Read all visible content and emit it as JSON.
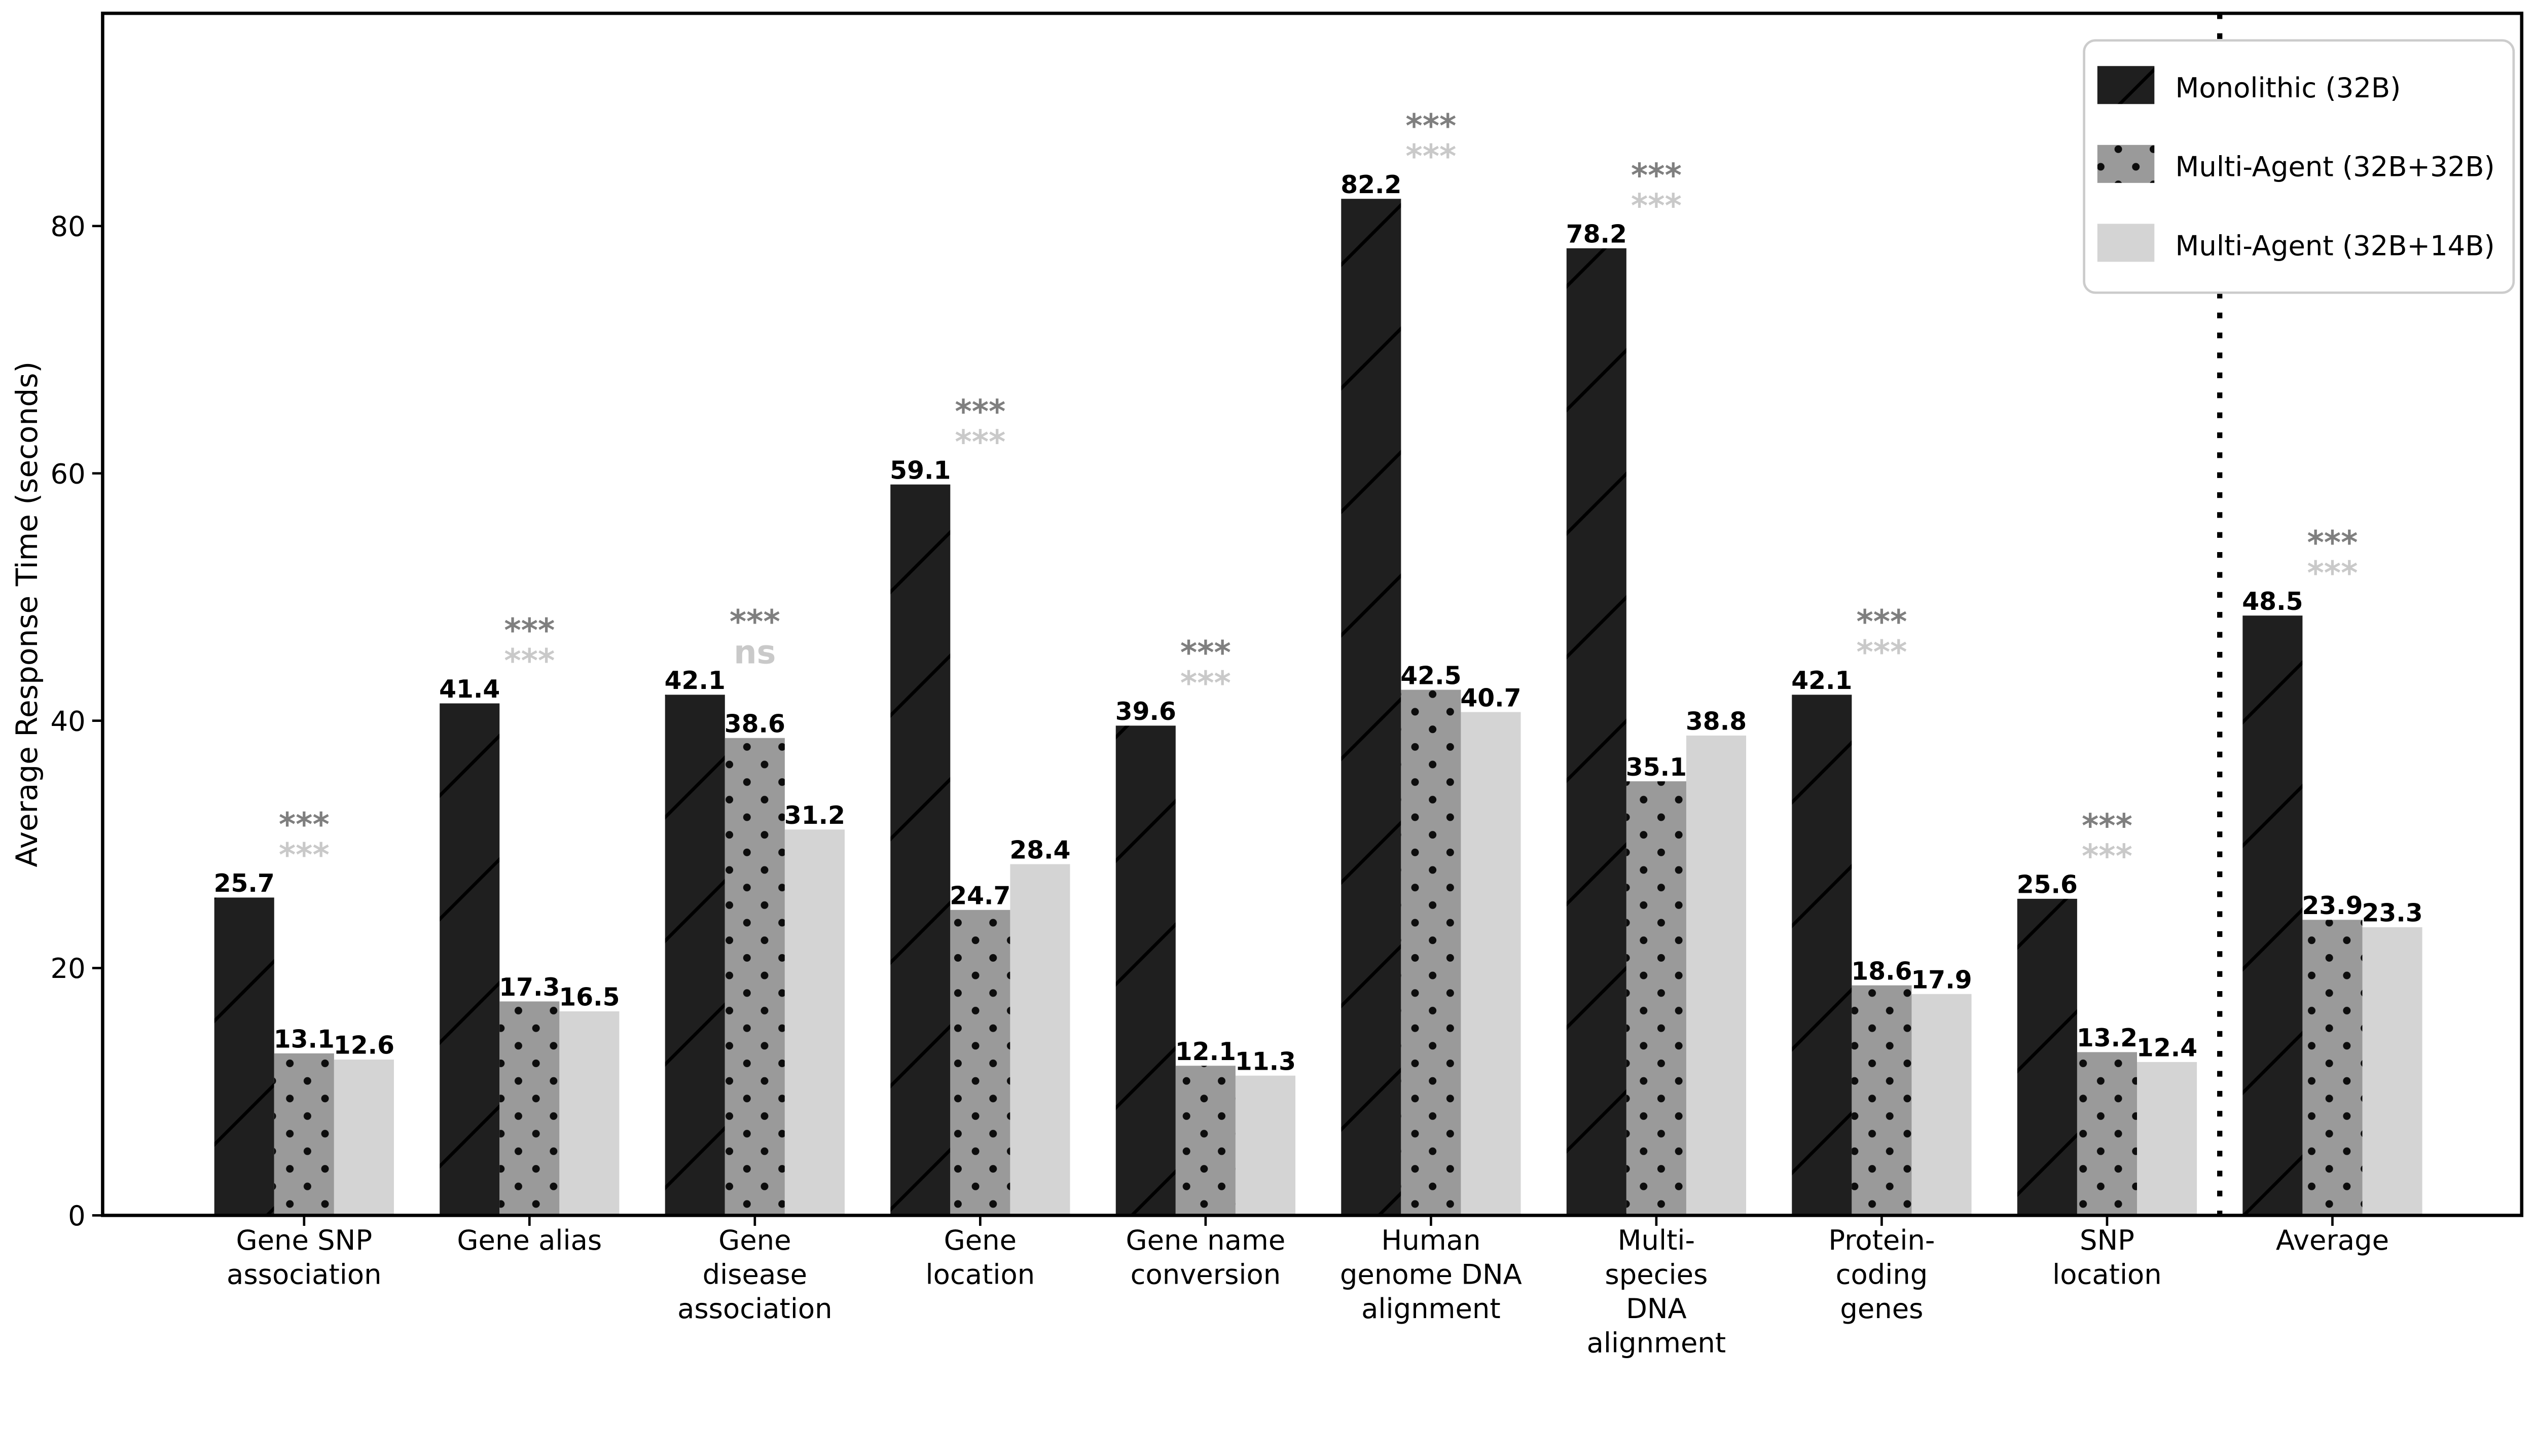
{
  "chart_data": {
    "type": "bar",
    "title": "",
    "xlabel": "",
    "ylabel": "Average Response Time (seconds)",
    "ylim": [
      0,
      97.2
    ],
    "yticks": [
      0,
      20,
      40,
      60,
      80
    ],
    "grid": false,
    "legend_position": "top-right",
    "categories": [
      "Gene SNP\nassociation",
      "Gene alias",
      "Gene\ndisease\nassociation",
      "Gene\nlocation",
      "Gene name\nconversion",
      "Human\ngenome DNA\nalignment",
      "Multi-\nspecies\nDNA\nalignment",
      "Protein-\ncoding\ngenes",
      "SNP\nlocation",
      "Average"
    ],
    "series": [
      {
        "name": "Monolithic (32B)",
        "hatch": "diagonal",
        "color": "#1f1f1f",
        "hatch_color": "#000000",
        "values": [
          25.7,
          41.4,
          42.1,
          59.1,
          39.6,
          82.2,
          78.2,
          42.1,
          25.6,
          48.5
        ]
      },
      {
        "name": "Multi-Agent (32B+32B)",
        "hatch": "dots",
        "color": "#9a9a9a",
        "hatch_color": "#0d0d0d",
        "values": [
          13.1,
          17.3,
          38.6,
          24.7,
          12.1,
          42.5,
          35.1,
          18.6,
          13.2,
          23.9
        ]
      },
      {
        "name": "Multi-Agent (32B+14B)",
        "hatch": "none",
        "color": "#d4d4d4",
        "hatch_color": "none",
        "values": [
          12.6,
          16.5,
          31.2,
          28.4,
          11.3,
          40.7,
          38.8,
          17.9,
          12.4,
          23.3
        ]
      }
    ],
    "significance": [
      {
        "row1": "***",
        "row2": "***"
      },
      {
        "row1": "***",
        "row2": "***"
      },
      {
        "row1": "***",
        "row2": "ns"
      },
      {
        "row1": "***",
        "row2": "***"
      },
      {
        "row1": "***",
        "row2": "***"
      },
      {
        "row1": "***",
        "row2": "***"
      },
      {
        "row1": "***",
        "row2": "***"
      },
      {
        "row1": "***",
        "row2": "***"
      },
      {
        "row1": "***",
        "row2": "***"
      },
      {
        "row1": "***",
        "row2": "***"
      }
    ],
    "significance_colors": {
      "row1": "#7f7f7f",
      "row2": "#c9c9c9"
    },
    "separator_before_category": "Average",
    "axis_color": "#000000",
    "value_label_color": "#000000",
    "value_label_decimals": 1
  }
}
